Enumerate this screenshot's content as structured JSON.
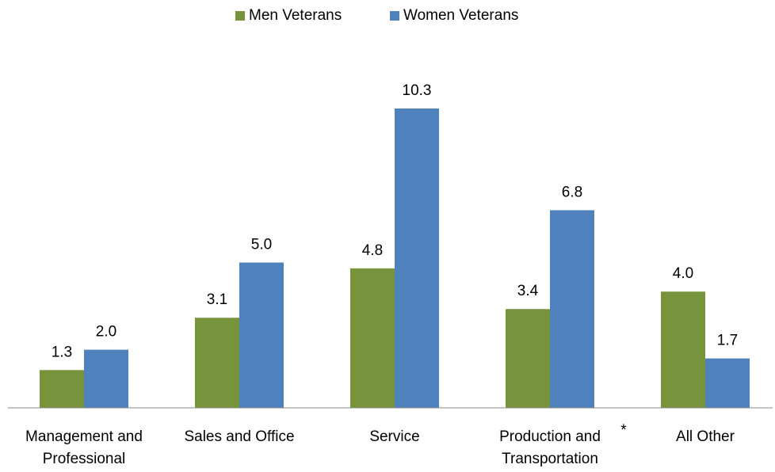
{
  "chart_data": {
    "type": "bar",
    "categories": [
      [
        "Management and",
        "Professional"
      ],
      [
        "Sales and Office"
      ],
      [
        "Service"
      ],
      [
        "Production and",
        "Transportation"
      ],
      [
        "All Other"
      ]
    ],
    "series": [
      {
        "name": "Men Veterans",
        "color": "#77933c",
        "values": [
          1.3,
          3.1,
          4.8,
          3.4,
          4.0
        ],
        "value_labels": [
          "1.3",
          "3.1",
          "4.8",
          "3.4",
          "4.0"
        ]
      },
      {
        "name": "Women Veterans",
        "color": "#4f81bd",
        "values": [
          2.0,
          5.0,
          10.3,
          6.8,
          1.7
        ],
        "value_labels": [
          "2.0",
          "5.0",
          "10.3",
          "6.8",
          "1.7"
        ]
      }
    ],
    "annotations": [
      "*"
    ],
    "legend": "top"
  }
}
